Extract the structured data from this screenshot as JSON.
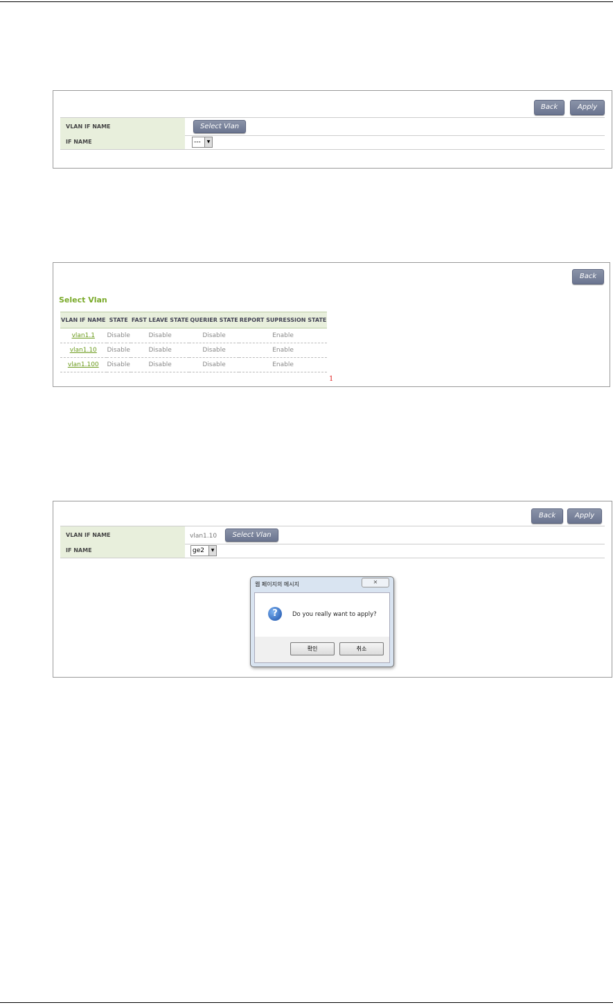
{
  "panel1": {
    "back": "Back",
    "apply": "Apply",
    "vlan_if_name_label": "VLAN IF NAME",
    "select_vlan": "Select Vlan",
    "if_name_label": "IF NAME",
    "if_name_value": "---"
  },
  "panel2": {
    "back": "Back",
    "title": "Select Vlan",
    "columns": [
      "VLAN IF NAME",
      "STATE",
      "FAST LEAVE STATE",
      "QUERIER STATE",
      "REPORT SUPRESSION STATE"
    ],
    "rows": [
      [
        "vlan1.1",
        "Disable",
        "Disable",
        "Disable",
        "Enable"
      ],
      [
        "vlan1.10",
        "Disable",
        "Disable",
        "Disable",
        "Enable"
      ],
      [
        "vlan1.100",
        "Disable",
        "Disable",
        "Disable",
        "Enable"
      ]
    ],
    "page": "1"
  },
  "panel3": {
    "back": "Back",
    "apply": "Apply",
    "vlan_if_name_label": "VLAN IF NAME",
    "vlan_value": "vlan1.10",
    "select_vlan": "Select Vlan",
    "if_name_label": "IF NAME",
    "if_name_value": "ge2"
  },
  "dialog": {
    "title": "웹 페이지의 메시지",
    "close": "✕",
    "message": "Do you really want to apply?",
    "ok": "확인",
    "cancel": "취소",
    "icon": "question-icon"
  }
}
